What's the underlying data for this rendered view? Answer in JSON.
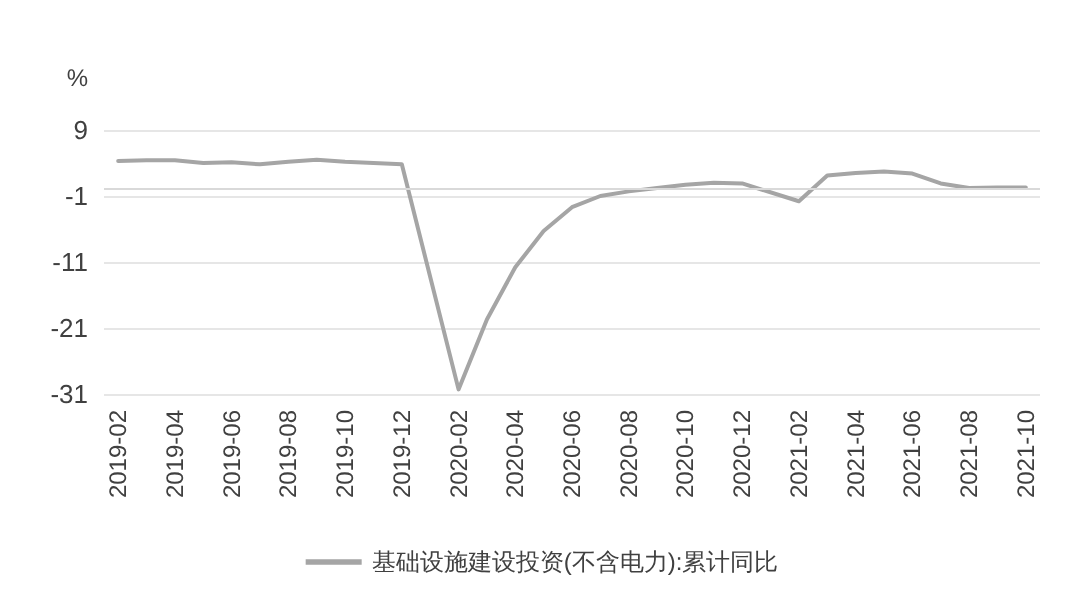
{
  "chart_data": {
    "type": "line",
    "ylabel": "%",
    "categories": [
      "2019-02",
      null,
      "2019-04",
      null,
      "2019-06",
      null,
      "2019-08",
      null,
      "2019-10",
      null,
      "2019-12",
      null,
      "2020-02",
      null,
      "2020-04",
      null,
      "2020-06",
      null,
      "2020-08",
      null,
      "2020-10",
      null,
      "2020-12",
      null,
      "2021-02",
      null,
      "2021-04",
      null,
      "2021-06",
      null,
      "2021-08",
      null,
      "2021-10"
    ],
    "series": [
      {
        "name": "基础设施建设投资(不含电力):累计同比",
        "color": "#a5a5a5",
        "values": [
          4.3,
          4.4,
          4.4,
          4.0,
          4.1,
          3.8,
          4.2,
          4.5,
          4.2,
          4.0,
          3.8,
          null,
          -30.3,
          -19.7,
          -11.8,
          -6.3,
          -2.7,
          -1.0,
          -0.3,
          0.2,
          0.7,
          1.0,
          0.9,
          null,
          -1.8,
          2.1,
          2.5,
          2.7,
          2.4,
          0.9,
          0.2,
          0.3,
          0.3
        ]
      }
    ],
    "ylim": [
      -31,
      9
    ],
    "yticks": [
      9,
      -1,
      -11,
      -21,
      -31
    ],
    "grid": "y",
    "legend": "bottom",
    "marker": "none",
    "line_style": "solid",
    "ref_lines": [
      {
        "axis": "y",
        "value": 0,
        "color": "#d9d9d9"
      }
    ]
  }
}
